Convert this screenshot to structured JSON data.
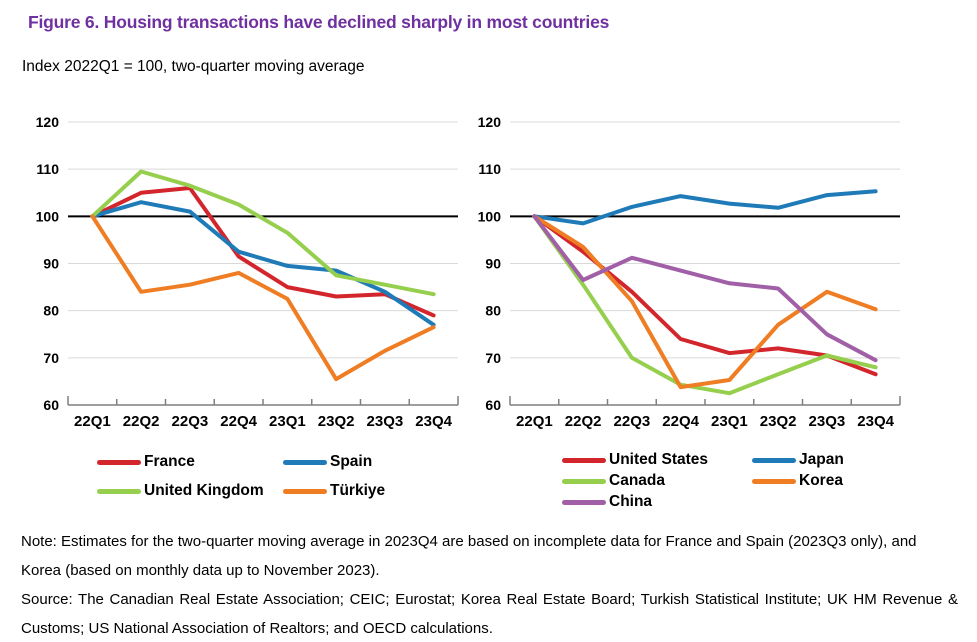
{
  "figure": {
    "title": "Figure 6. Housing transactions have declined sharply in most countries",
    "subtitle": "Index 2022Q1 = 100, two-quarter moving average"
  },
  "colors": {
    "title": "#7030a0",
    "reference_line": "#000000",
    "gridline": "#d9d9d9",
    "axis": "#7f7f7f",
    "tick_text": "#000000"
  },
  "chart_data": [
    {
      "type": "line",
      "title": "",
      "xlabel": "",
      "ylabel": "",
      "categories": [
        "22Q1",
        "22Q2",
        "22Q3",
        "22Q4",
        "23Q1",
        "23Q2",
        "23Q3",
        "23Q4"
      ],
      "ylim": [
        60,
        120
      ],
      "yticks": [
        60,
        70,
        80,
        90,
        100,
        110,
        120
      ],
      "reference_line": 100,
      "grid": true,
      "legend_position": "bottom",
      "series": [
        {
          "name": "France",
          "color": "#d2262c",
          "values": [
            100,
            105,
            106,
            91.5,
            85,
            83,
            83.5,
            79
          ]
        },
        {
          "name": "Spain",
          "color": "#1f7ab8",
          "values": [
            100,
            103,
            101,
            92.5,
            89.5,
            88.5,
            84,
            77
          ]
        },
        {
          "name": "United Kingdom",
          "color": "#95cf4d",
          "values": [
            100,
            109.5,
            106.5,
            102.5,
            96.5,
            87.5,
            85.5,
            83.5
          ]
        },
        {
          "name": "Türkiye",
          "color": "#ef7d23",
          "values": [
            100,
            84,
            85.5,
            88,
            82.5,
            65.5,
            71.5,
            76.5
          ]
        }
      ],
      "legend_order": [
        "France",
        "Spain",
        "United Kingdom",
        "Türkiye"
      ]
    },
    {
      "type": "line",
      "title": "",
      "xlabel": "",
      "ylabel": "",
      "categories": [
        "22Q1",
        "22Q2",
        "22Q3",
        "22Q4",
        "23Q1",
        "23Q2",
        "23Q3",
        "23Q4"
      ],
      "ylim": [
        60,
        120
      ],
      "yticks": [
        60,
        70,
        80,
        90,
        100,
        110,
        120
      ],
      "reference_line": 100,
      "grid": true,
      "legend_position": "bottom",
      "series": [
        {
          "name": "United States",
          "color": "#d2262c",
          "values": [
            100,
            92.5,
            84,
            74,
            71,
            72,
            70.5,
            66.5
          ]
        },
        {
          "name": "Japan",
          "color": "#1f7ab8",
          "values": [
            100,
            98.5,
            102,
            104.3,
            102.7,
            101.8,
            104.5,
            105.3
          ]
        },
        {
          "name": "Canada",
          "color": "#95cf4d",
          "values": [
            100,
            85.5,
            70,
            64.3,
            62.5,
            66.5,
            70.5,
            68
          ]
        },
        {
          "name": "Korea",
          "color": "#ef7d23",
          "values": [
            100,
            93.5,
            82,
            63.8,
            65.3,
            77,
            84,
            80.3
          ]
        },
        {
          "name": "China",
          "color": "#a05fa7",
          "values": [
            100,
            86.5,
            91.2,
            88.5,
            85.8,
            84.7,
            75,
            69.5
          ]
        }
      ],
      "legend_order": [
        "United States",
        "Japan",
        "Canada",
        "Korea",
        "China"
      ]
    }
  ],
  "note": "Note: Estimates for the two-quarter moving average in 2023Q4 are based on incomplete data for France and Spain (2023Q3 only), and Korea (based on monthly data up to November 2023).",
  "source": "Source: The Canadian Real Estate Association; CEIC; Eurostat; Korea Real Estate Board; Turkish Statistical Institute; UK HM Revenue & Customs; US National Association of Realtors; and OECD calculations."
}
